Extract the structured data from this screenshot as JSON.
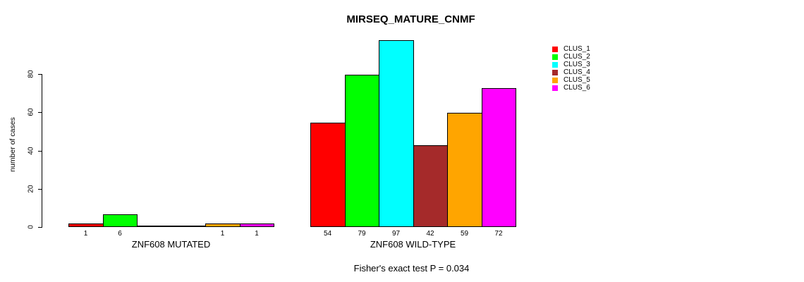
{
  "chart_data": {
    "type": "bar",
    "title": "MIRSEQ_MATURE_CNMF",
    "ylabel": "number of cases",
    "xlabel": "",
    "yticks": [
      0,
      20,
      40,
      60,
      80
    ],
    "ylim": [
      0,
      97
    ],
    "grid": false,
    "legend_position": "top-right",
    "categories": [
      "CLUS_1",
      "CLUS_2",
      "CLUS_3",
      "CLUS_4",
      "CLUS_5",
      "CLUS_6"
    ],
    "colors": [
      "#ff0000",
      "#00ff00",
      "#00ffff",
      "#a52a2a",
      "#ffa500",
      "#ff00ff"
    ],
    "groups": [
      {
        "label": "ZNF608 MUTATED",
        "values": [
          1,
          6,
          0,
          0,
          1,
          1
        ],
        "bar_labels": [
          "1",
          "6",
          "",
          "",
          "1",
          "1"
        ]
      },
      {
        "label": "ZNF608 WILD-TYPE",
        "values": [
          54,
          79,
          97,
          42,
          59,
          72
        ],
        "bar_labels": [
          "54",
          "79",
          "97",
          "42",
          "59",
          "72"
        ]
      }
    ],
    "annotation": "Fisher's exact test P = 0.034"
  }
}
